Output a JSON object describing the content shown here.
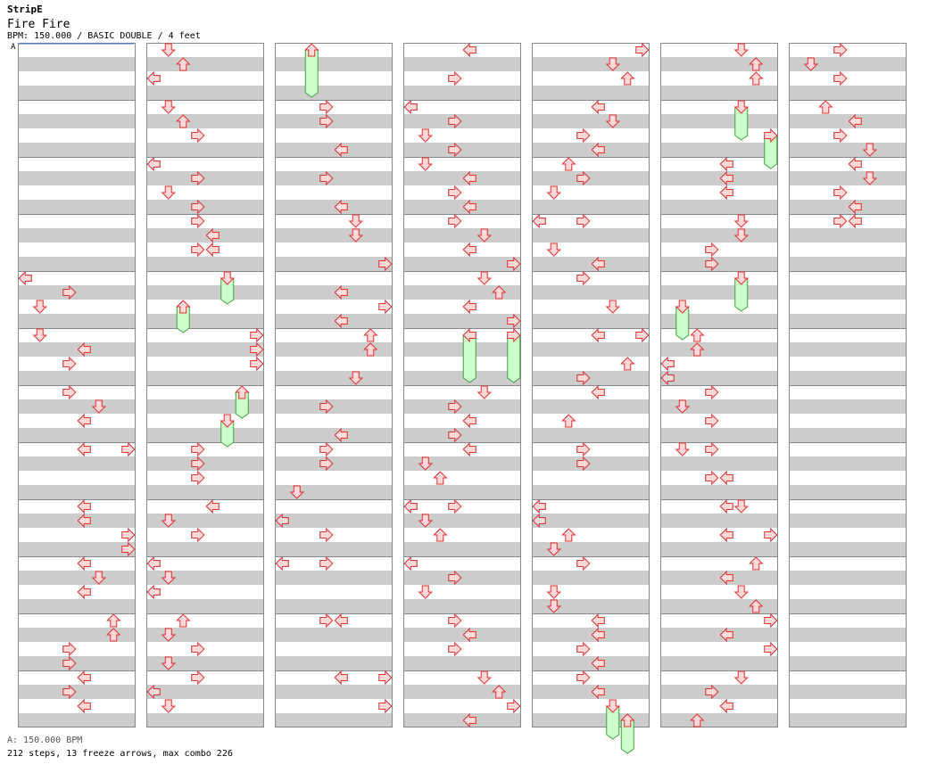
{
  "site_title": "StripE",
  "song_title": "Fire Fire",
  "chart_info": "BPM: 150.000 / BASIC DOUBLE / 4 feet",
  "bpm_marker": "A",
  "bpm_legend": "A: 150.000 BPM",
  "stats": "212 steps, 13 freeze arrows, max combo 226",
  "colors": {
    "arrow_fill": "#ffd8d8",
    "arrow_stroke": "#e03030",
    "freeze_fill": "#ccffcc",
    "freeze_stroke": "#40a040",
    "stripe": "#cccccc",
    "border": "#888888"
  },
  "chart_data": {
    "type": "step-chart",
    "style": "BASIC DOUBLE",
    "bpm": 150.0,
    "columns": 7,
    "measures_per_column": 12,
    "lanes": [
      "L1",
      "D1",
      "U1",
      "R1",
      "L2",
      "D2",
      "U2",
      "R2"
    ],
    "steps": [
      {
        "c": 0,
        "m": 4,
        "b": 0,
        "l": "L1"
      },
      {
        "c": 0,
        "m": 4,
        "b": 1,
        "l": "R1"
      },
      {
        "c": 0,
        "m": 4,
        "b": 2,
        "l": "D1"
      },
      {
        "c": 0,
        "m": 5,
        "b": 0,
        "l": "D1"
      },
      {
        "c": 0,
        "m": 5,
        "b": 1,
        "l": "L2"
      },
      {
        "c": 0,
        "m": 5,
        "b": 2,
        "l": "R1"
      },
      {
        "c": 0,
        "m": 6,
        "b": 0,
        "l": "R1"
      },
      {
        "c": 0,
        "m": 6,
        "b": 1,
        "l": "D2"
      },
      {
        "c": 0,
        "m": 6,
        "b": 2,
        "l": "L2"
      },
      {
        "c": 0,
        "m": 7,
        "b": 0,
        "l": "L2"
      },
      {
        "c": 0,
        "m": 7,
        "b": 0,
        "l": "R2"
      },
      {
        "c": 0,
        "m": 8,
        "b": 0,
        "l": "L2"
      },
      {
        "c": 0,
        "m": 8,
        "b": 1,
        "l": "L2"
      },
      {
        "c": 0,
        "m": 8,
        "b": 2,
        "l": "R2"
      },
      {
        "c": 0,
        "m": 8,
        "b": 3,
        "l": "R2"
      },
      {
        "c": 0,
        "m": 9,
        "b": 0,
        "l": "L2"
      },
      {
        "c": 0,
        "m": 9,
        "b": 1,
        "l": "D2"
      },
      {
        "c": 0,
        "m": 9,
        "b": 2,
        "l": "L2"
      },
      {
        "c": 0,
        "m": 10,
        "b": 0,
        "l": "U2"
      },
      {
        "c": 0,
        "m": 10,
        "b": 1,
        "l": "U2"
      },
      {
        "c": 0,
        "m": 10,
        "b": 2,
        "l": "R1"
      },
      {
        "c": 0,
        "m": 10,
        "b": 3,
        "l": "R1"
      },
      {
        "c": 0,
        "m": 11,
        "b": 0,
        "l": "L2"
      },
      {
        "c": 0,
        "m": 11,
        "b": 1,
        "l": "R1"
      },
      {
        "c": 0,
        "m": 11,
        "b": 2,
        "l": "L2"
      },
      {
        "c": 1,
        "m": 0,
        "b": 0,
        "l": "D1"
      },
      {
        "c": 1,
        "m": 0,
        "b": 1,
        "l": "U1"
      },
      {
        "c": 1,
        "m": 0,
        "b": 2,
        "l": "L1"
      },
      {
        "c": 1,
        "m": 1,
        "b": 0,
        "l": "D1"
      },
      {
        "c": 1,
        "m": 1,
        "b": 1,
        "l": "U1"
      },
      {
        "c": 1,
        "m": 1,
        "b": 2,
        "l": "R1"
      },
      {
        "c": 1,
        "m": 2,
        "b": 0,
        "l": "L1"
      },
      {
        "c": 1,
        "m": 2,
        "b": 1,
        "l": "R1"
      },
      {
        "c": 1,
        "m": 2,
        "b": 2,
        "l": "D1"
      },
      {
        "c": 1,
        "m": 2,
        "b": 3,
        "l": "R1"
      },
      {
        "c": 1,
        "m": 3,
        "b": 0,
        "l": "R1"
      },
      {
        "c": 1,
        "m": 3,
        "b": 1,
        "l": "L2"
      },
      {
        "c": 1,
        "m": 3,
        "b": 2,
        "l": "R1"
      },
      {
        "c": 1,
        "m": 3,
        "b": 2,
        "l": "L2"
      },
      {
        "c": 1,
        "m": 4,
        "b": 0,
        "l": "D2",
        "f": 1.5
      },
      {
        "c": 1,
        "m": 4,
        "b": 2,
        "l": "U1",
        "f": 1.5
      },
      {
        "c": 1,
        "m": 5,
        "b": 0,
        "l": "R2"
      },
      {
        "c": 1,
        "m": 5,
        "b": 1,
        "l": "R2"
      },
      {
        "c": 1,
        "m": 5,
        "b": 2,
        "l": "R2"
      },
      {
        "c": 1,
        "m": 6,
        "b": 0,
        "l": "U2",
        "f": 1.5
      },
      {
        "c": 1,
        "m": 6,
        "b": 2,
        "l": "D2",
        "f": 1.5
      },
      {
        "c": 1,
        "m": 7,
        "b": 0,
        "l": "R1"
      },
      {
        "c": 1,
        "m": 7,
        "b": 1,
        "l": "R1"
      },
      {
        "c": 1,
        "m": 7,
        "b": 2,
        "l": "R1"
      },
      {
        "c": 1,
        "m": 8,
        "b": 0,
        "l": "L2"
      },
      {
        "c": 1,
        "m": 8,
        "b": 1,
        "l": "D1"
      },
      {
        "c": 1,
        "m": 8,
        "b": 2,
        "l": "R1"
      },
      {
        "c": 1,
        "m": 9,
        "b": 0,
        "l": "L1"
      },
      {
        "c": 1,
        "m": 9,
        "b": 1,
        "l": "D1"
      },
      {
        "c": 1,
        "m": 9,
        "b": 2,
        "l": "L1"
      },
      {
        "c": 1,
        "m": 10,
        "b": 0,
        "l": "U1"
      },
      {
        "c": 1,
        "m": 10,
        "b": 1,
        "l": "D1"
      },
      {
        "c": 1,
        "m": 10,
        "b": 2,
        "l": "R1"
      },
      {
        "c": 1,
        "m": 10,
        "b": 3,
        "l": "D1"
      },
      {
        "c": 1,
        "m": 11,
        "b": 0,
        "l": "R1"
      },
      {
        "c": 1,
        "m": 11,
        "b": 1,
        "l": "L1"
      },
      {
        "c": 1,
        "m": 11,
        "b": 2,
        "l": "D1"
      },
      {
        "c": 2,
        "m": 0,
        "b": 0,
        "l": "U1",
        "f": 3
      },
      {
        "c": 2,
        "m": 1,
        "b": 0,
        "l": "R1"
      },
      {
        "c": 2,
        "m": 1,
        "b": 1,
        "l": "R1"
      },
      {
        "c": 2,
        "m": 1,
        "b": 3,
        "l": "L2"
      },
      {
        "c": 2,
        "m": 2,
        "b": 1,
        "l": "R1"
      },
      {
        "c": 2,
        "m": 2,
        "b": 3,
        "l": "L2"
      },
      {
        "c": 2,
        "m": 3,
        "b": 0,
        "l": "D2"
      },
      {
        "c": 2,
        "m": 3,
        "b": 1,
        "l": "D2"
      },
      {
        "c": 2,
        "m": 3,
        "b": 3,
        "l": "R2"
      },
      {
        "c": 2,
        "m": 4,
        "b": 1,
        "l": "L2"
      },
      {
        "c": 2,
        "m": 4,
        "b": 2,
        "l": "R2"
      },
      {
        "c": 2,
        "m": 4,
        "b": 3,
        "l": "L2"
      },
      {
        "c": 2,
        "m": 5,
        "b": 0,
        "l": "U2"
      },
      {
        "c": 2,
        "m": 5,
        "b": 1,
        "l": "U2"
      },
      {
        "c": 2,
        "m": 5,
        "b": 3,
        "l": "D2"
      },
      {
        "c": 2,
        "m": 6,
        "b": 1,
        "l": "R1"
      },
      {
        "c": 2,
        "m": 6,
        "b": 3,
        "l": "L2"
      },
      {
        "c": 2,
        "m": 7,
        "b": 0,
        "l": "R1"
      },
      {
        "c": 2,
        "m": 7,
        "b": 1,
        "l": "R1"
      },
      {
        "c": 2,
        "m": 7,
        "b": 3,
        "l": "D1"
      },
      {
        "c": 2,
        "m": 8,
        "b": 1,
        "l": "L1"
      },
      {
        "c": 2,
        "m": 8,
        "b": 2,
        "l": "R1"
      },
      {
        "c": 2,
        "m": 9,
        "b": 0,
        "l": "L1"
      },
      {
        "c": 2,
        "m": 9,
        "b": 0,
        "l": "R1"
      },
      {
        "c": 2,
        "m": 10,
        "b": 0,
        "l": "R1"
      },
      {
        "c": 2,
        "m": 10,
        "b": 0,
        "l": "L2"
      },
      {
        "c": 2,
        "m": 11,
        "b": 0,
        "l": "L2"
      },
      {
        "c": 2,
        "m": 11,
        "b": 0,
        "l": "R2"
      },
      {
        "c": 2,
        "m": 11,
        "b": 2,
        "l": "R2"
      },
      {
        "c": 3,
        "m": 0,
        "b": 0,
        "l": "L2"
      },
      {
        "c": 3,
        "m": 0,
        "b": 2,
        "l": "R1"
      },
      {
        "c": 3,
        "m": 1,
        "b": 0,
        "l": "L1"
      },
      {
        "c": 3,
        "m": 1,
        "b": 1,
        "l": "R1"
      },
      {
        "c": 3,
        "m": 1,
        "b": 2,
        "l": "D1"
      },
      {
        "c": 3,
        "m": 1,
        "b": 3,
        "l": "R1"
      },
      {
        "c": 3,
        "m": 2,
        "b": 0,
        "l": "D1"
      },
      {
        "c": 3,
        "m": 2,
        "b": 1,
        "l": "L2"
      },
      {
        "c": 3,
        "m": 2,
        "b": 2,
        "l": "R1"
      },
      {
        "c": 3,
        "m": 2,
        "b": 3,
        "l": "L2"
      },
      {
        "c": 3,
        "m": 3,
        "b": 0,
        "l": "R1"
      },
      {
        "c": 3,
        "m": 3,
        "b": 1,
        "l": "D2"
      },
      {
        "c": 3,
        "m": 3,
        "b": 2,
        "l": "L2"
      },
      {
        "c": 3,
        "m": 3,
        "b": 3,
        "l": "R2"
      },
      {
        "c": 3,
        "m": 4,
        "b": 0,
        "l": "D2"
      },
      {
        "c": 3,
        "m": 4,
        "b": 1,
        "l": "U2"
      },
      {
        "c": 3,
        "m": 4,
        "b": 2,
        "l": "L2"
      },
      {
        "c": 3,
        "m": 4,
        "b": 3,
        "l": "R2"
      },
      {
        "c": 3,
        "m": 5,
        "b": 0,
        "l": "L2",
        "f": 3
      },
      {
        "c": 3,
        "m": 5,
        "b": 0,
        "l": "R2",
        "f": 3
      },
      {
        "c": 3,
        "m": 6,
        "b": 0,
        "l": "D2"
      },
      {
        "c": 3,
        "m": 6,
        "b": 1,
        "l": "R1"
      },
      {
        "c": 3,
        "m": 6,
        "b": 2,
        "l": "L2"
      },
      {
        "c": 3,
        "m": 6,
        "b": 3,
        "l": "R1"
      },
      {
        "c": 3,
        "m": 7,
        "b": 0,
        "l": "L2"
      },
      {
        "c": 3,
        "m": 7,
        "b": 1,
        "l": "D1"
      },
      {
        "c": 3,
        "m": 7,
        "b": 2,
        "l": "U1"
      },
      {
        "c": 3,
        "m": 8,
        "b": 0,
        "l": "L1"
      },
      {
        "c": 3,
        "m": 8,
        "b": 0,
        "l": "R1"
      },
      {
        "c": 3,
        "m": 8,
        "b": 1,
        "l": "D1"
      },
      {
        "c": 3,
        "m": 8,
        "b": 2,
        "l": "U1"
      },
      {
        "c": 3,
        "m": 9,
        "b": 0,
        "l": "L1"
      },
      {
        "c": 3,
        "m": 9,
        "b": 1,
        "l": "R1"
      },
      {
        "c": 3,
        "m": 9,
        "b": 2,
        "l": "D1"
      },
      {
        "c": 3,
        "m": 10,
        "b": 0,
        "l": "R1"
      },
      {
        "c": 3,
        "m": 10,
        "b": 1,
        "l": "L2"
      },
      {
        "c": 3,
        "m": 10,
        "b": 2,
        "l": "R1"
      },
      {
        "c": 3,
        "m": 11,
        "b": 0,
        "l": "D2"
      },
      {
        "c": 3,
        "m": 11,
        "b": 1,
        "l": "U2"
      },
      {
        "c": 3,
        "m": 11,
        "b": 2,
        "l": "R2"
      },
      {
        "c": 3,
        "m": 11,
        "b": 3,
        "l": "L2"
      },
      {
        "c": 4,
        "m": 0,
        "b": 0,
        "l": "R2"
      },
      {
        "c": 4,
        "m": 0,
        "b": 1,
        "l": "D2"
      },
      {
        "c": 4,
        "m": 0,
        "b": 2,
        "l": "U2"
      },
      {
        "c": 4,
        "m": 1,
        "b": 0,
        "l": "L2"
      },
      {
        "c": 4,
        "m": 1,
        "b": 1,
        "l": "D2"
      },
      {
        "c": 4,
        "m": 1,
        "b": 2,
        "l": "R1"
      },
      {
        "c": 4,
        "m": 1,
        "b": 3,
        "l": "L2"
      },
      {
        "c": 4,
        "m": 2,
        "b": 0,
        "l": "U1"
      },
      {
        "c": 4,
        "m": 2,
        "b": 1,
        "l": "R1"
      },
      {
        "c": 4,
        "m": 2,
        "b": 2,
        "l": "D1"
      },
      {
        "c": 4,
        "m": 3,
        "b": 0,
        "l": "L1"
      },
      {
        "c": 4,
        "m": 3,
        "b": 0,
        "l": "R1"
      },
      {
        "c": 4,
        "m": 3,
        "b": 2,
        "l": "D1"
      },
      {
        "c": 4,
        "m": 3,
        "b": 3,
        "l": "L2"
      },
      {
        "c": 4,
        "m": 4,
        "b": 0,
        "l": "R1"
      },
      {
        "c": 4,
        "m": 4,
        "b": 2,
        "l": "D2"
      },
      {
        "c": 4,
        "m": 5,
        "b": 0,
        "l": "L2"
      },
      {
        "c": 4,
        "m": 5,
        "b": 0,
        "l": "R2"
      },
      {
        "c": 4,
        "m": 5,
        "b": 2,
        "l": "U2"
      },
      {
        "c": 4,
        "m": 5,
        "b": 3,
        "l": "R1"
      },
      {
        "c": 4,
        "m": 6,
        "b": 0,
        "l": "L2"
      },
      {
        "c": 4,
        "m": 6,
        "b": 2,
        "l": "U1"
      },
      {
        "c": 4,
        "m": 7,
        "b": 0,
        "l": "R1"
      },
      {
        "c": 4,
        "m": 7,
        "b": 1,
        "l": "R1"
      },
      {
        "c": 4,
        "m": 8,
        "b": 0,
        "l": "L1"
      },
      {
        "c": 4,
        "m": 8,
        "b": 1,
        "l": "L1"
      },
      {
        "c": 4,
        "m": 8,
        "b": 2,
        "l": "U1"
      },
      {
        "c": 4,
        "m": 8,
        "b": 3,
        "l": "D1"
      },
      {
        "c": 4,
        "m": 9,
        "b": 0,
        "l": "R1"
      },
      {
        "c": 4,
        "m": 9,
        "b": 2,
        "l": "D1"
      },
      {
        "c": 4,
        "m": 9,
        "b": 3,
        "l": "D1"
      },
      {
        "c": 4,
        "m": 10,
        "b": 0,
        "l": "L2"
      },
      {
        "c": 4,
        "m": 10,
        "b": 1,
        "l": "L2"
      },
      {
        "c": 4,
        "m": 10,
        "b": 2,
        "l": "R1"
      },
      {
        "c": 4,
        "m": 10,
        "b": 3,
        "l": "L2"
      },
      {
        "c": 4,
        "m": 11,
        "b": 0,
        "l": "R1"
      },
      {
        "c": 4,
        "m": 11,
        "b": 1,
        "l": "L2"
      },
      {
        "c": 4,
        "m": 11,
        "b": 2,
        "l": "D2",
        "f": 2
      },
      {
        "c": 4,
        "m": 11,
        "b": 3,
        "l": "U2",
        "f": 2
      },
      {
        "c": 5,
        "m": 0,
        "b": 0,
        "l": "D2"
      },
      {
        "c": 5,
        "m": 0,
        "b": 1,
        "l": "U2"
      },
      {
        "c": 5,
        "m": 0,
        "b": 2,
        "l": "U2"
      },
      {
        "c": 5,
        "m": 1,
        "b": 0,
        "l": "D2",
        "f": 2
      },
      {
        "c": 5,
        "m": 1,
        "b": 2,
        "l": "R2",
        "f": 2
      },
      {
        "c": 5,
        "m": 2,
        "b": 0,
        "l": "L2"
      },
      {
        "c": 5,
        "m": 2,
        "b": 1,
        "l": "L2"
      },
      {
        "c": 5,
        "m": 2,
        "b": 2,
        "l": "L2"
      },
      {
        "c": 5,
        "m": 3,
        "b": 0,
        "l": "D2"
      },
      {
        "c": 5,
        "m": 3,
        "b": 1,
        "l": "D2"
      },
      {
        "c": 5,
        "m": 3,
        "b": 2,
        "l": "R1"
      },
      {
        "c": 5,
        "m": 3,
        "b": 3,
        "l": "R1"
      },
      {
        "c": 5,
        "m": 4,
        "b": 0,
        "l": "D2",
        "f": 2
      },
      {
        "c": 5,
        "m": 4,
        "b": 2,
        "l": "D1",
        "f": 2
      },
      {
        "c": 5,
        "m": 5,
        "b": 0,
        "l": "U1"
      },
      {
        "c": 5,
        "m": 5,
        "b": 1,
        "l": "U1"
      },
      {
        "c": 5,
        "m": 5,
        "b": 2,
        "l": "L1"
      },
      {
        "c": 5,
        "m": 5,
        "b": 3,
        "l": "L1"
      },
      {
        "c": 5,
        "m": 6,
        "b": 0,
        "l": "R1"
      },
      {
        "c": 5,
        "m": 6,
        "b": 1,
        "l": "D1"
      },
      {
        "c": 5,
        "m": 6,
        "b": 2,
        "l": "R1"
      },
      {
        "c": 5,
        "m": 7,
        "b": 0,
        "l": "D1"
      },
      {
        "c": 5,
        "m": 7,
        "b": 0,
        "l": "R1"
      },
      {
        "c": 5,
        "m": 7,
        "b": 2,
        "l": "R1"
      },
      {
        "c": 5,
        "m": 7,
        "b": 2,
        "l": "L2"
      },
      {
        "c": 5,
        "m": 8,
        "b": 0,
        "l": "L2"
      },
      {
        "c": 5,
        "m": 8,
        "b": 0,
        "l": "D2"
      },
      {
        "c": 5,
        "m": 8,
        "b": 2,
        "l": "L2"
      },
      {
        "c": 5,
        "m": 8,
        "b": 2,
        "l": "R2"
      },
      {
        "c": 5,
        "m": 9,
        "b": 0,
        "l": "U2"
      },
      {
        "c": 5,
        "m": 9,
        "b": 1,
        "l": "L2"
      },
      {
        "c": 5,
        "m": 9,
        "b": 2,
        "l": "D2"
      },
      {
        "c": 5,
        "m": 9,
        "b": 3,
        "l": "U2"
      },
      {
        "c": 5,
        "m": 10,
        "b": 0,
        "l": "R2"
      },
      {
        "c": 5,
        "m": 10,
        "b": 1,
        "l": "L2"
      },
      {
        "c": 5,
        "m": 10,
        "b": 2,
        "l": "R2"
      },
      {
        "c": 5,
        "m": 11,
        "b": 0,
        "l": "D2"
      },
      {
        "c": 5,
        "m": 11,
        "b": 1,
        "l": "R1"
      },
      {
        "c": 5,
        "m": 11,
        "b": 2,
        "l": "L2"
      },
      {
        "c": 5,
        "m": 11,
        "b": 3,
        "l": "U1"
      },
      {
        "c": 6,
        "m": 0,
        "b": 0,
        "l": "R1"
      },
      {
        "c": 6,
        "m": 0,
        "b": 1,
        "l": "D1"
      },
      {
        "c": 6,
        "m": 0,
        "b": 2,
        "l": "R1"
      },
      {
        "c": 6,
        "m": 1,
        "b": 0,
        "l": "U1"
      },
      {
        "c": 6,
        "m": 1,
        "b": 1,
        "l": "L2"
      },
      {
        "c": 6,
        "m": 1,
        "b": 2,
        "l": "R1"
      },
      {
        "c": 6,
        "m": 1,
        "b": 3,
        "l": "D2"
      },
      {
        "c": 6,
        "m": 2,
        "b": 0,
        "l": "L2"
      },
      {
        "c": 6,
        "m": 2,
        "b": 1,
        "l": "D2"
      },
      {
        "c": 6,
        "m": 2,
        "b": 2,
        "l": "R1"
      },
      {
        "c": 6,
        "m": 2,
        "b": 3,
        "l": "L2"
      },
      {
        "c": 6,
        "m": 3,
        "b": 0,
        "l": "R1"
      },
      {
        "c": 6,
        "m": 3,
        "b": 0,
        "l": "L2"
      }
    ]
  }
}
